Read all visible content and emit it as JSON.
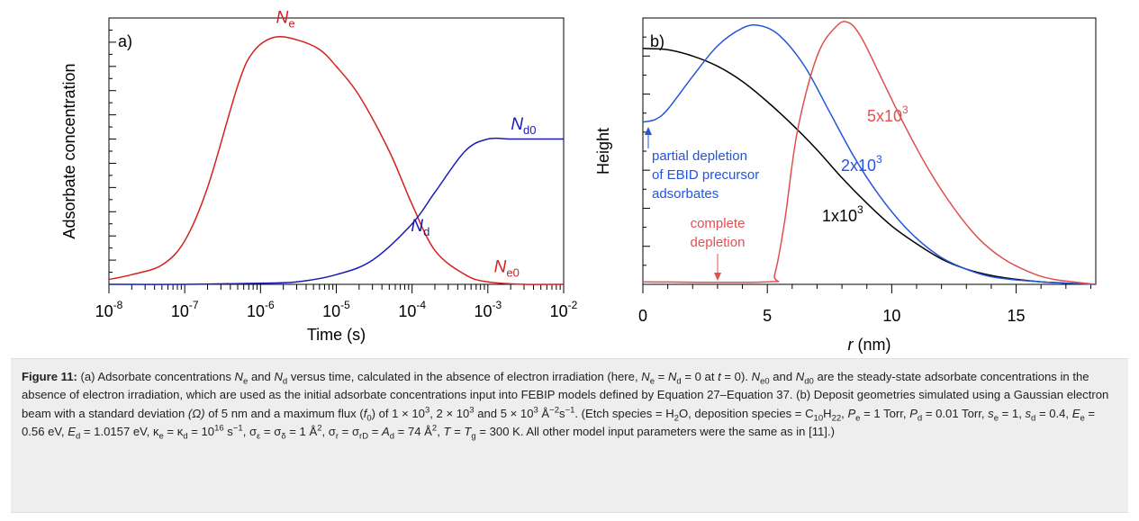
{
  "chart_data": [
    {
      "type": "line",
      "panel_label": "a)",
      "xlabel": "Time (s)",
      "ylabel": "Adsorbate concentration",
      "x_scale": "log",
      "xlim": [
        1e-08,
        0.01
      ],
      "ylim": [
        0,
        1.1
      ],
      "y_tick_labels": "none",
      "x_ticks": [
        {
          "value": 1e-08,
          "base": "10",
          "exp": "-8"
        },
        {
          "value": 1e-07,
          "base": "10",
          "exp": "-7"
        },
        {
          "value": 1e-06,
          "base": "10",
          "exp": "-6"
        },
        {
          "value": 1e-05,
          "base": "10",
          "exp": "-5"
        },
        {
          "value": 0.0001,
          "base": "10",
          "exp": "-4"
        },
        {
          "value": 0.001,
          "base": "10",
          "exp": "-3"
        },
        {
          "value": 0.01,
          "base": "10",
          "exp": "-2"
        }
      ],
      "series": [
        {
          "color": "#d42020",
          "x": [
            1e-08,
            2e-08,
            5e-08,
            1e-07,
            2e-07,
            5e-07,
            8e-07,
            1.5e-06,
            3e-06,
            6e-06,
            1e-05,
            2e-05,
            5e-05,
            0.0001,
            0.0002,
            0.0005,
            0.001,
            0.003,
            0.01
          ],
          "y": [
            0.02,
            0.04,
            0.08,
            0.18,
            0.4,
            0.82,
            0.96,
            1.02,
            1.01,
            0.97,
            0.9,
            0.78,
            0.55,
            0.33,
            0.14,
            0.04,
            0.01,
            0.0,
            0.0
          ]
        },
        {
          "color": "#1a1ab8",
          "x": [
            1e-08,
            1e-07,
            1e-06,
            3e-06,
            1e-05,
            3e-05,
            0.0001,
            0.0002,
            0.0005,
            0.001,
            0.002,
            0.005,
            0.01
          ],
          "y": [
            0.0,
            0.0,
            0.005,
            0.01,
            0.04,
            0.1,
            0.25,
            0.38,
            0.55,
            0.6,
            0.6,
            0.6,
            0.6
          ]
        }
      ],
      "annotations": [
        {
          "main": "N",
          "sub": "e",
          "x": 2e-06,
          "y": 1.08,
          "color": "#d42020"
        },
        {
          "main": "N",
          "sub": "d0",
          "x": 0.0025,
          "y": 0.64,
          "color": "#1a1ab8"
        },
        {
          "main": "N",
          "sub": "d",
          "x": 0.00012,
          "y": 0.22,
          "color": "#1a1ab8"
        },
        {
          "main": "N",
          "sub": "e0",
          "x": 0.0015,
          "y": 0.05,
          "color": "#d42020"
        }
      ]
    },
    {
      "type": "line",
      "panel_label": "b)",
      "xlabel_main": "r",
      "xlabel_unit": " (nm)",
      "ylabel": "Height",
      "xlim": [
        0,
        18.2
      ],
      "ylim": [
        0,
        1.05
      ],
      "y_tick_labels": "none",
      "x_ticks": [
        0,
        5,
        10,
        15
      ],
      "series": [
        {
          "label": "1x10",
          "label_exp": "3",
          "color": "#000000",
          "x": [
            0,
            1,
            2,
            3,
            4,
            5,
            6,
            7,
            8,
            9,
            10,
            11,
            12,
            13,
            14,
            15,
            16,
            17,
            18.2
          ],
          "y": [
            0.93,
            0.925,
            0.9,
            0.86,
            0.8,
            0.72,
            0.63,
            0.53,
            0.42,
            0.32,
            0.23,
            0.16,
            0.1,
            0.06,
            0.035,
            0.02,
            0.01,
            0.005,
            0.0
          ]
        },
        {
          "label": "2x10",
          "label_exp": "3",
          "color": "#2255dd",
          "x": [
            0,
            0.5,
            1,
            2,
            3,
            4,
            4.7,
            5.5,
            6.5,
            7.5,
            8.5,
            9.5,
            10.5,
            11.5,
            12.5,
            14,
            16,
            18.2
          ],
          "y": [
            0.64,
            0.65,
            0.69,
            0.82,
            0.94,
            1.01,
            1.02,
            0.98,
            0.86,
            0.68,
            0.5,
            0.35,
            0.23,
            0.14,
            0.08,
            0.03,
            0.01,
            0.0
          ]
        },
        {
          "label": "5x10",
          "label_exp": "3",
          "color": "#e05050",
          "x": [
            0,
            5.0,
            5.3,
            5.7,
            6.2,
            7.0,
            7.8,
            8.3,
            8.8,
            9.5,
            10.5,
            11.5,
            12.5,
            13.5,
            14.5,
            15.5,
            16.5,
            18.2
          ],
          "y": [
            0.01,
            0.01,
            0.04,
            0.25,
            0.6,
            0.9,
            1.02,
            1.03,
            0.97,
            0.83,
            0.63,
            0.45,
            0.3,
            0.18,
            0.1,
            0.05,
            0.02,
            0.0
          ]
        }
      ],
      "annotations": [
        {
          "lines": [
            "partial depletion",
            "of EBID precursor",
            "adsorbates"
          ],
          "color": "#2255dd"
        },
        {
          "lines": [
            "complete",
            "depletion"
          ],
          "color": "#e05050"
        }
      ]
    }
  ],
  "caption": [
    {
      "text": "Figure 11:",
      "b": true
    },
    {
      "text": " (a) Adsorbate concentrations "
    },
    {
      "text": "N",
      "i": true
    },
    {
      "text": "e",
      "sub": true
    },
    {
      "text": " and "
    },
    {
      "text": "N",
      "i": true
    },
    {
      "text": "d",
      "sub": true
    },
    {
      "text": " versus time, calculated in the absence of electron irradiation (here, "
    },
    {
      "text": "N",
      "i": true
    },
    {
      "text": "e",
      "sub": true
    },
    {
      "text": " = "
    },
    {
      "text": "N",
      "i": true
    },
    {
      "text": "d",
      "sub": true
    },
    {
      "text": " = 0 at "
    },
    {
      "text": "t",
      "i": true
    },
    {
      "text": " = 0). "
    },
    {
      "text": "N",
      "i": true
    },
    {
      "text": "e0",
      "sub": true
    },
    {
      "text": " and "
    },
    {
      "text": "N",
      "i": true
    },
    {
      "text": "d0",
      "sub": true
    },
    {
      "text": " are the steady-state adsorbate concentrations in the absence of electron irradiation, which are used as the initial adsorbate concentrations input into FEBIP models defined by Equation 27–Equation 37. (b) Deposit geometries simulated using a Gaussian electron beam with a standard deviation "
    },
    {
      "text": "(Ω)",
      "i": true
    },
    {
      "text": " of 5 nm and a maximum flux ("
    },
    {
      "text": "f",
      "i": true
    },
    {
      "text": "0",
      "sub": true
    },
    {
      "text": ") of 1 × 10"
    },
    {
      "text": "3",
      "sup": true
    },
    {
      "text": ", 2 × 10"
    },
    {
      "text": "3",
      "sup": true
    },
    {
      "text": " and 5 × 10"
    },
    {
      "text": "3",
      "sup": true
    },
    {
      "text": " Å"
    },
    {
      "text": "−2",
      "sup": true
    },
    {
      "text": "s"
    },
    {
      "text": "−1",
      "sup": true
    },
    {
      "text": ". (Etch species = H"
    },
    {
      "text": "2",
      "sub": true
    },
    {
      "text": "O, deposition species = C"
    },
    {
      "text": "10",
      "sub": true
    },
    {
      "text": "H"
    },
    {
      "text": "22",
      "sub": true
    },
    {
      "text": ", "
    },
    {
      "text": "P",
      "i": true
    },
    {
      "text": "e",
      "sub": true
    },
    {
      "text": " = 1 Torr, "
    },
    {
      "text": "P",
      "i": true
    },
    {
      "text": "d",
      "sub": true
    },
    {
      "text": " = 0.01 Torr, "
    },
    {
      "text": "s",
      "i": true
    },
    {
      "text": "e",
      "sub": true
    },
    {
      "text": " = 1, "
    },
    {
      "text": "s",
      "i": true
    },
    {
      "text": "d",
      "sub": true
    },
    {
      "text": " = 0.4, "
    },
    {
      "text": "E",
      "i": true
    },
    {
      "text": "e",
      "sub": true
    },
    {
      "text": " = 0.56 eV, "
    },
    {
      "text": "E",
      "i": true
    },
    {
      "text": "d",
      "sub": true
    },
    {
      "text": " = 1.0157 eV, κ"
    },
    {
      "text": "e",
      "sub": true
    },
    {
      "text": " = κ"
    },
    {
      "text": "d",
      "sub": true
    },
    {
      "text": " = 10"
    },
    {
      "text": "16",
      "sup": true
    },
    {
      "text": " s"
    },
    {
      "text": "−1",
      "sup": true
    },
    {
      "text": ", σ"
    },
    {
      "text": "ε",
      "sub": true
    },
    {
      "text": " = σ"
    },
    {
      "text": "δ",
      "sub": true
    },
    {
      "text": " = 1 Å"
    },
    {
      "text": "2",
      "sup": true
    },
    {
      "text": ", σ"
    },
    {
      "text": "r",
      "sub": true
    },
    {
      "text": " = σ"
    },
    {
      "text": "rD",
      "sub": true
    },
    {
      "text": " = "
    },
    {
      "text": "A",
      "i": true
    },
    {
      "text": "d",
      "sub": true
    },
    {
      "text": " = 74 Å"
    },
    {
      "text": "2",
      "sup": true
    },
    {
      "text": ", "
    },
    {
      "text": "T",
      "i": true
    },
    {
      "text": " = "
    },
    {
      "text": "T",
      "i": true
    },
    {
      "text": "g",
      "sub": true
    },
    {
      "text": " = 300 K. All other model input parameters were the same as in [11].)"
    }
  ]
}
